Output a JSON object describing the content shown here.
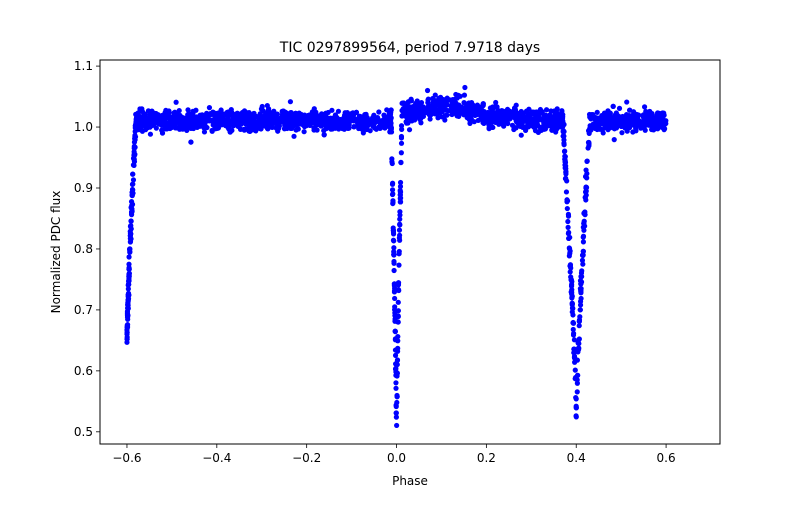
{
  "chart_data": {
    "type": "scatter",
    "title": "TIC 0297899564, period 7.9718 days",
    "xlabel": "Phase",
    "ylabel": "Normalized PDC flux",
    "xlim": [
      -0.66,
      0.72
    ],
    "ylim": [
      0.48,
      1.11
    ],
    "xticks": [
      -0.6,
      -0.4,
      -0.2,
      0.0,
      0.2,
      0.4,
      0.6
    ],
    "xtick_labels": [
      "−0.6",
      "−0.4",
      "−0.2",
      "0.0",
      "0.2",
      "0.4",
      "0.6"
    ],
    "yticks": [
      0.5,
      0.6,
      0.7,
      0.8,
      0.9,
      1.0,
      1.1
    ],
    "ytick_labels": [
      "0.5",
      "0.6",
      "0.7",
      "0.8",
      "0.9",
      "1.0",
      "1.1"
    ],
    "grid": false,
    "series": [
      {
        "name": "PDC flux",
        "color": "#0000ff",
        "marker": "circle",
        "phase_range": [
          -0.6,
          0.6
        ],
        "baseline_flux": 1.01,
        "eclipses": [
          {
            "center_phase": -0.6,
            "min_flux": 0.65,
            "ingress_width": 0.02,
            "side": "egress-only"
          },
          {
            "center_phase": 0.0,
            "min_flux": 0.5,
            "ingress_width": 0.012,
            "side": "both"
          },
          {
            "center_phase": 0.4,
            "min_flux": 0.53,
            "ingress_width": 0.03,
            "side": "both"
          }
        ],
        "features": [
          {
            "phase_range": [
              0.0,
              0.2
            ],
            "flux": 1.06,
            "note": "post-eclipse brightening bump"
          }
        ]
      }
    ]
  }
}
